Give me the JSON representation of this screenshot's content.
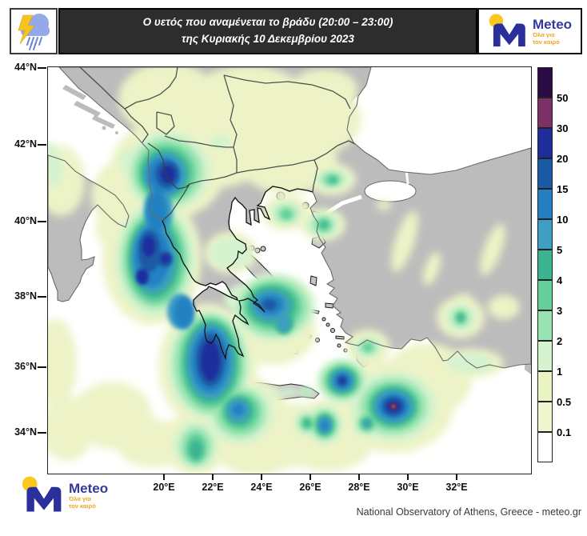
{
  "header": {
    "title_line1": "Ο υετός που αναμένεται το βράδυ (20:00 – 23:00)",
    "title_line2": "της Κυριακής 10 Δεκεμβρίου 2023",
    "band_color": "#2d2d2d"
  },
  "branding": {
    "name": "Meteo",
    "tagline_line1": "Όλα για",
    "tagline_line2": "τον καιρό",
    "logo_letter": "M",
    "logo_blue": "#2b2f9b",
    "logo_yellow": "#f8c81c",
    "tagline_color": "#f0a41e"
  },
  "map": {
    "lat_labels": [
      "44°N",
      "42°N",
      "40°N",
      "38°N",
      "36°N",
      "34°N"
    ],
    "lon_labels": [
      "20°E",
      "22°E",
      "24°E",
      "26°E",
      "28°E",
      "30°E",
      "32°E"
    ],
    "sea_color": "#ffffff",
    "land_color": "#bcbcbc",
    "greek_coast_color": "#141414",
    "other_coast_color": "#6a6a6a"
  },
  "legend": {
    "values_top_to_bottom": [
      "50",
      "30",
      "20",
      "15",
      "10",
      "5",
      "4",
      "3",
      "2",
      "1",
      "0.5",
      "0.1"
    ],
    "colors_top_to_bottom": [
      "#2b0b45",
      "#7d3166",
      "#1e2d9c",
      "#1b5aa5",
      "#2381c2",
      "#3e9ec3",
      "#3bb491",
      "#63d09b",
      "#97e4b0",
      "#d5f3cf",
      "#eaf3c2",
      "#f0f5cd",
      "#ffffff"
    ]
  },
  "footer": {
    "attribution": "National Observatory of Athens, Greece - meteo.gr"
  }
}
